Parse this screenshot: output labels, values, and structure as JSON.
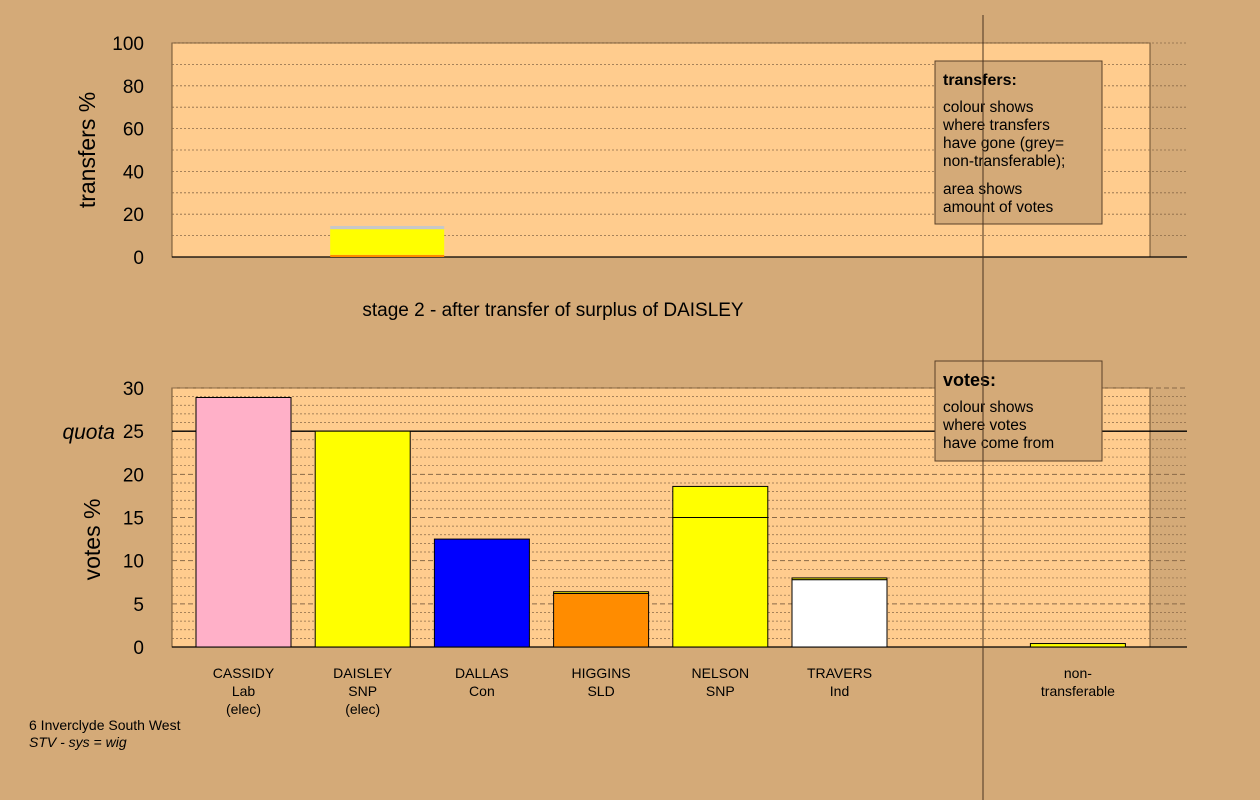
{
  "colors": {
    "background": "#d4aa78",
    "plot_fill": "#ffcc8e",
    "legend_fill": "#d4aa78",
    "nontransferable_grey": "#c8c8c8"
  },
  "stage_title": "stage 2 - after transfer of surplus of DAISLEY",
  "footer": {
    "ward": "6 Inverclyde South West",
    "system": "STV - sys = wig"
  },
  "legends": {
    "transfers": {
      "title": "transfers:",
      "lines1": [
        "colour shows",
        "where transfers",
        "have gone (grey=",
        "non-transferable);"
      ],
      "lines2": [
        "area shows",
        "amount of votes"
      ]
    },
    "votes": {
      "title": "votes:",
      "lines": [
        "colour shows",
        "where votes",
        "have come from"
      ]
    }
  },
  "chart_data": [
    {
      "type": "bar",
      "panel": "transfers",
      "ylabel": "transfers %",
      "ylim": [
        0,
        100
      ],
      "yticks": [
        0,
        20,
        40,
        60,
        80,
        100
      ],
      "bars": [
        {
          "slot": 1,
          "segments": [
            {
              "value": 1.0,
              "color": "#ff8c00"
            },
            {
              "value": 12.0,
              "color": "#ffff00"
            },
            {
              "value": 1.5,
              "color": "#c8c8c8"
            }
          ]
        }
      ]
    },
    {
      "type": "bar",
      "panel": "votes",
      "ylabel": "votes %",
      "ylim": [
        0,
        30
      ],
      "yticks": [
        0,
        5,
        10,
        15,
        20,
        25,
        30
      ],
      "quota": {
        "label": "quota",
        "value": 25
      },
      "categories": [
        {
          "name": "CASSIDY",
          "party": "Lab",
          "status": "(elec)"
        },
        {
          "name": "DAISLEY",
          "party": "SNP",
          "status": "(elec)"
        },
        {
          "name": "DALLAS",
          "party": "Con",
          "status": ""
        },
        {
          "name": "HIGGINS",
          "party": "SLD",
          "status": ""
        },
        {
          "name": "NELSON",
          "party": "SNP",
          "status": ""
        },
        {
          "name": "TRAVERS",
          "party": "Ind",
          "status": ""
        },
        {
          "name": "",
          "party": "",
          "status": ""
        },
        {
          "name": "non-",
          "party": "transferable",
          "status": ""
        }
      ],
      "bars": [
        {
          "slot": 0,
          "segments": [
            {
              "value": 28.9,
              "color": "#ffb0c8"
            }
          ]
        },
        {
          "slot": 1,
          "segments": [
            {
              "value": 25.0,
              "color": "#ffff00"
            }
          ]
        },
        {
          "slot": 2,
          "segments": [
            {
              "value": 12.5,
              "color": "#0000ff"
            }
          ]
        },
        {
          "slot": 3,
          "segments": [
            {
              "value": 6.2,
              "color": "#ff8c00"
            },
            {
              "value": 0.2,
              "color": "#ffff00"
            }
          ]
        },
        {
          "slot": 4,
          "segments": [
            {
              "value": 15.0,
              "color": "#ffff00"
            },
            {
              "value": 3.6,
              "color": "#ffff00"
            }
          ]
        },
        {
          "slot": 5,
          "segments": [
            {
              "value": 7.8,
              "color": "#ffffff"
            },
            {
              "value": 0.2,
              "color": "#ffff00"
            }
          ]
        },
        {
          "slot": 7,
          "segments": [
            {
              "value": 0.4,
              "color": "#ffff00"
            }
          ]
        }
      ]
    }
  ]
}
